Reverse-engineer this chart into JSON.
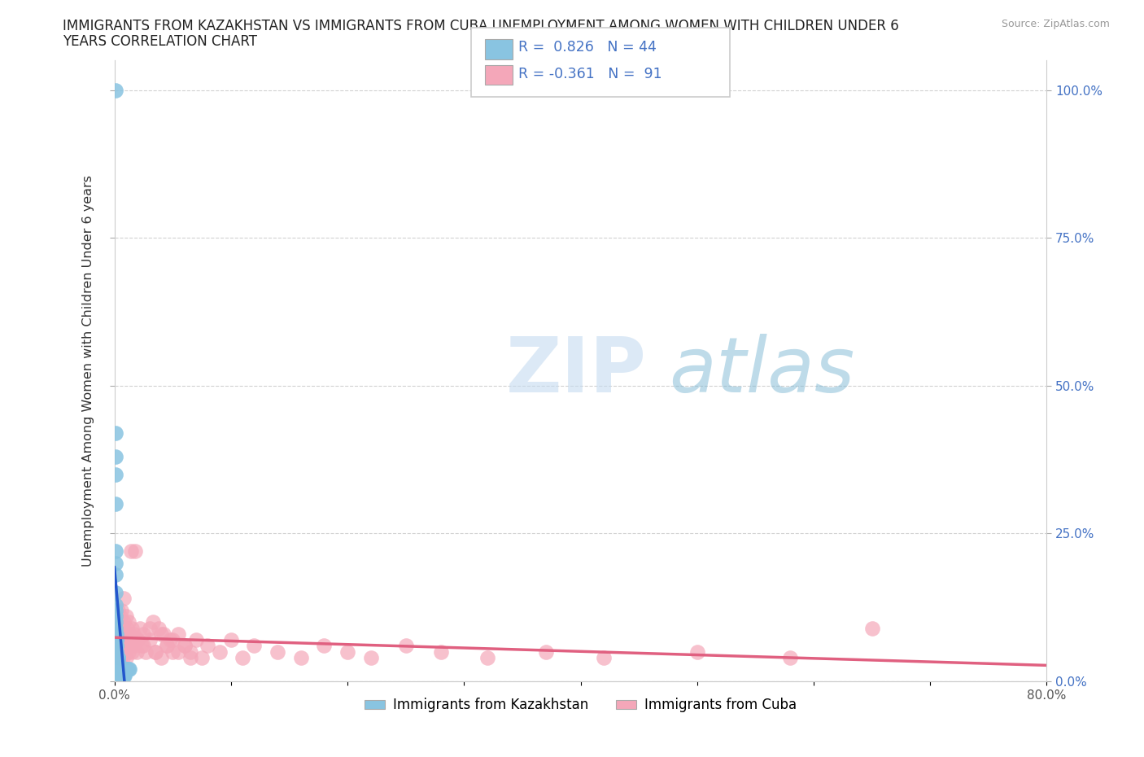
{
  "title_line1": "IMMIGRANTS FROM KAZAKHSTAN VS IMMIGRANTS FROM CUBA UNEMPLOYMENT AMONG WOMEN WITH CHILDREN UNDER 6",
  "title_line2": "YEARS CORRELATION CHART",
  "source": "Source: ZipAtlas.com",
  "ylabel": "Unemployment Among Women with Children Under 6 years",
  "xlim": [
    0.0,
    0.8
  ],
  "ylim": [
    0.0,
    1.05
  ],
  "xticks": [
    0.0,
    0.1,
    0.2,
    0.3,
    0.4,
    0.5,
    0.6,
    0.7,
    0.8
  ],
  "xticklabels": [
    "0.0%",
    "",
    "",
    "",
    "",
    "",
    "",
    "",
    "80.0%"
  ],
  "yticks": [
    0.0,
    0.25,
    0.5,
    0.75,
    1.0
  ],
  "right_yticklabels": [
    "0.0%",
    "25.0%",
    "50.0%",
    "75.0%",
    "100.0%"
  ],
  "kazakhstan_color": "#89C4E1",
  "cuba_color": "#F4A7B9",
  "trend_kazakhstan_color": "#2255CC",
  "trend_cuba_color": "#E06080",
  "legend_kaz_label": "Immigrants from Kazakhstan",
  "legend_cuba_label": "Immigrants from Cuba",
  "R_kaz": 0.826,
  "N_kaz": 44,
  "R_cuba": -0.361,
  "N_cuba": 91,
  "watermark_ZIP": "ZIP",
  "watermark_atlas": "atlas",
  "background_color": "#ffffff",
  "kazakhstan_x": [
    0.001,
    0.001,
    0.001,
    0.001,
    0.001,
    0.001,
    0.001,
    0.001,
    0.001,
    0.001,
    0.001,
    0.001,
    0.001,
    0.001,
    0.001,
    0.002,
    0.002,
    0.002,
    0.002,
    0.002,
    0.002,
    0.002,
    0.003,
    0.003,
    0.003,
    0.003,
    0.003,
    0.004,
    0.004,
    0.004,
    0.005,
    0.005,
    0.005,
    0.006,
    0.006,
    0.007,
    0.007,
    0.008,
    0.008,
    0.009,
    0.01,
    0.011,
    0.012,
    0.013
  ],
  "kazakhstan_y": [
    1.0,
    0.42,
    0.38,
    0.35,
    0.3,
    0.22,
    0.2,
    0.18,
    0.15,
    0.13,
    0.12,
    0.11,
    0.1,
    0.09,
    0.08,
    0.08,
    0.07,
    0.07,
    0.06,
    0.06,
    0.05,
    0.05,
    0.04,
    0.04,
    0.04,
    0.03,
    0.03,
    0.03,
    0.02,
    0.02,
    0.02,
    0.02,
    0.01,
    0.01,
    0.01,
    0.01,
    0.01,
    0.01,
    0.01,
    0.01,
    0.02,
    0.02,
    0.02,
    0.02
  ],
  "cuba_x": [
    0.001,
    0.002,
    0.002,
    0.003,
    0.003,
    0.003,
    0.003,
    0.004,
    0.004,
    0.004,
    0.004,
    0.005,
    0.005,
    0.005,
    0.005,
    0.005,
    0.006,
    0.006,
    0.006,
    0.007,
    0.007,
    0.007,
    0.008,
    0.008,
    0.008,
    0.009,
    0.009,
    0.01,
    0.01,
    0.01,
    0.011,
    0.011,
    0.012,
    0.012,
    0.013,
    0.013,
    0.014,
    0.014,
    0.015,
    0.015,
    0.016,
    0.017,
    0.018,
    0.019,
    0.02,
    0.022,
    0.023,
    0.025,
    0.027,
    0.03,
    0.033,
    0.035,
    0.038,
    0.04,
    0.042,
    0.045,
    0.048,
    0.05,
    0.055,
    0.06,
    0.065,
    0.07,
    0.075,
    0.08,
    0.09,
    0.1,
    0.11,
    0.12,
    0.14,
    0.16,
    0.18,
    0.2,
    0.22,
    0.25,
    0.28,
    0.32,
    0.37,
    0.42,
    0.5,
    0.58,
    0.65,
    0.02,
    0.025,
    0.03,
    0.035,
    0.04,
    0.045,
    0.05,
    0.055,
    0.06,
    0.065
  ],
  "cuba_y": [
    0.06,
    0.05,
    0.08,
    0.04,
    0.09,
    0.06,
    0.12,
    0.05,
    0.07,
    0.09,
    0.1,
    0.08,
    0.06,
    0.11,
    0.04,
    0.07,
    0.09,
    0.06,
    0.12,
    0.05,
    0.08,
    0.04,
    0.1,
    0.06,
    0.14,
    0.05,
    0.08,
    0.07,
    0.11,
    0.04,
    0.09,
    0.06,
    0.1,
    0.05,
    0.08,
    0.06,
    0.07,
    0.22,
    0.05,
    0.09,
    0.08,
    0.06,
    0.22,
    0.05,
    0.07,
    0.09,
    0.06,
    0.08,
    0.05,
    0.07,
    0.1,
    0.05,
    0.09,
    0.04,
    0.08,
    0.06,
    0.07,
    0.05,
    0.08,
    0.06,
    0.05,
    0.07,
    0.04,
    0.06,
    0.05,
    0.07,
    0.04,
    0.06,
    0.05,
    0.04,
    0.06,
    0.05,
    0.04,
    0.06,
    0.05,
    0.04,
    0.05,
    0.04,
    0.05,
    0.04,
    0.09,
    0.07,
    0.06,
    0.09,
    0.05,
    0.08,
    0.06,
    0.07,
    0.05,
    0.06,
    0.04
  ]
}
